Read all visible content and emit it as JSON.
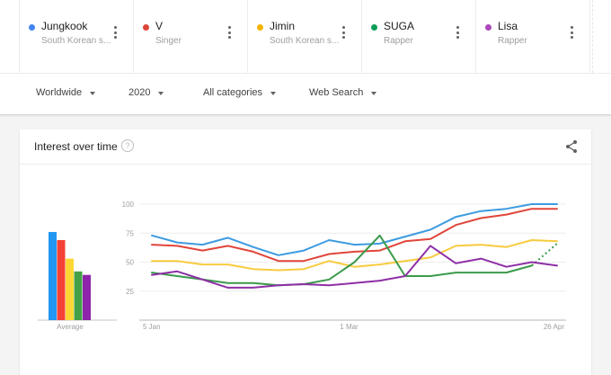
{
  "terms": [
    {
      "name": "Jungkook",
      "subtitle": "South Korean s...",
      "color": "#4285f4"
    },
    {
      "name": "V",
      "subtitle": "Singer",
      "color": "#db4437"
    },
    {
      "name": "Jimin",
      "subtitle": "South Korean s...",
      "color": "#f4b400"
    },
    {
      "name": "SUGA",
      "subtitle": "Rapper",
      "color": "#0f9d58"
    },
    {
      "name": "Lisa",
      "subtitle": "Rapper",
      "color": "#ab47bc"
    }
  ],
  "filters": {
    "region": "Worldwide",
    "time": "2020",
    "category": "All categories",
    "property": "Web Search"
  },
  "card": {
    "title": "Interest over time",
    "help_symbol": "?"
  },
  "chart_data": [
    {
      "type": "bar",
      "title": "Average",
      "categories": [
        "Jungkook",
        "V",
        "Jimin",
        "SUGA",
        "Lisa"
      ],
      "values": [
        76,
        69,
        53,
        42,
        39
      ],
      "colors": [
        "#2196f3",
        "#f44336",
        "#fdd835",
        "#43a047",
        "#8e24aa"
      ],
      "xlabel": "Average",
      "ylim": [
        0,
        100
      ]
    },
    {
      "type": "line",
      "title": "Interest over time",
      "x_count": 17,
      "x_tick_labels": [
        {
          "index": 0,
          "label": "5 Jan"
        },
        {
          "index": 8,
          "label": "1 Mar"
        },
        {
          "index": 16,
          "label": "26 Apr"
        }
      ],
      "y_ticks": [
        25,
        50,
        75,
        100
      ],
      "ylim": [
        0,
        100
      ],
      "grid": true,
      "series": [
        {
          "name": "Jungkook",
          "color": "#3d9be0",
          "values": [
            73,
            67,
            65,
            71,
            63,
            56,
            60,
            69,
            65,
            66,
            72,
            78,
            89,
            94,
            96,
            100,
            100
          ]
        },
        {
          "name": "V",
          "color": "#e0453a",
          "values": [
            65,
            64,
            60,
            64,
            59,
            51,
            51,
            57,
            59,
            60,
            68,
            70,
            82,
            88,
            91,
            96,
            96
          ]
        },
        {
          "name": "Jimin",
          "color": "#f7cb3f",
          "values": [
            51,
            51,
            48,
            48,
            44,
            43,
            44,
            51,
            46,
            48,
            51,
            54,
            64,
            65,
            63,
            69,
            68
          ]
        },
        {
          "name": "SUGA",
          "color": "#3b9a4b",
          "values": [
            41,
            38,
            35,
            32,
            32,
            30,
            31,
            35,
            50,
            73,
            38,
            38,
            41,
            41,
            41,
            47,
            66
          ],
          "partial_last": true
        },
        {
          "name": "Lisa",
          "color": "#8e2fa6",
          "values": [
            39,
            42,
            35,
            28,
            28,
            30,
            31,
            30,
            32,
            34,
            38,
            64,
            49,
            53,
            46,
            50,
            47
          ]
        }
      ]
    }
  ]
}
